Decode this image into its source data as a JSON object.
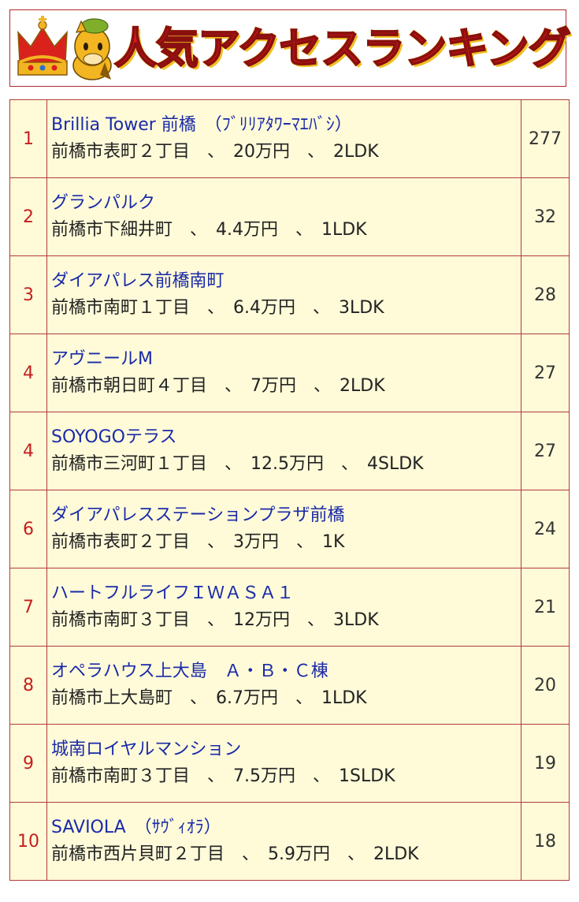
{
  "banner": {
    "title": "人気アクセスランキング",
    "crown_icon": "crown-icon",
    "mascot_icon": "horse-mascot-icon",
    "colors": {
      "title": "#e01818",
      "outline": "#8a1010",
      "glow": "#f0c020",
      "border": "#b22a2a"
    }
  },
  "ranking": {
    "colors": {
      "cell_bg": "#fffbd9",
      "border": "#b23a3a",
      "rank": "#c4201e",
      "name": "#1a2aa8"
    },
    "rows": [
      {
        "rank": "1",
        "name": "Brillia Tower 前橋　（ﾌﾞﾘﾘｱﾀﾜｰﾏｴﾊﾞｼ）",
        "detail": "前橋市表町２丁目　、　20万円　、　2LDK",
        "count": "277"
      },
      {
        "rank": "2",
        "name": "グランパルク",
        "detail": "前橋市下細井町　、　4.4万円　、　1LDK",
        "count": "32"
      },
      {
        "rank": "3",
        "name": "ダイアパレス前橋南町",
        "detail": "前橋市南町１丁目　、　6.4万円　、　3LDK",
        "count": "28"
      },
      {
        "rank": "4",
        "name": "アヴニールM",
        "detail": "前橋市朝日町４丁目　、　7万円　、　2LDK",
        "count": "27"
      },
      {
        "rank": "4",
        "name": "SOYOGOテラス",
        "detail": "前橋市三河町１丁目　、　12.5万円　、　4SLDK",
        "count": "27"
      },
      {
        "rank": "6",
        "name": "ダイアパレスステーションプラザ前橋",
        "detail": "前橋市表町２丁目　、　3万円　、　1K",
        "count": "24"
      },
      {
        "rank": "7",
        "name": "ハートフルライフＩＷＡＳＡ１",
        "detail": "前橋市南町３丁目　、　12万円　、　3LDK",
        "count": "21"
      },
      {
        "rank": "8",
        "name": "オペラハウス上大島　Ａ・Ｂ・Ｃ棟",
        "detail": "前橋市上大島町　、　6.7万円　、　1LDK",
        "count": "20"
      },
      {
        "rank": "9",
        "name": "城南ロイヤルマンション",
        "detail": "前橋市南町３丁目　、　7.5万円　、　1SLDK",
        "count": "19"
      },
      {
        "rank": "10",
        "name": "SAVIOLA　（ｻｳﾞｨｵﾗ）",
        "detail": "前橋市西片貝町２丁目　、　5.9万円　、　2LDK",
        "count": "18"
      }
    ]
  }
}
